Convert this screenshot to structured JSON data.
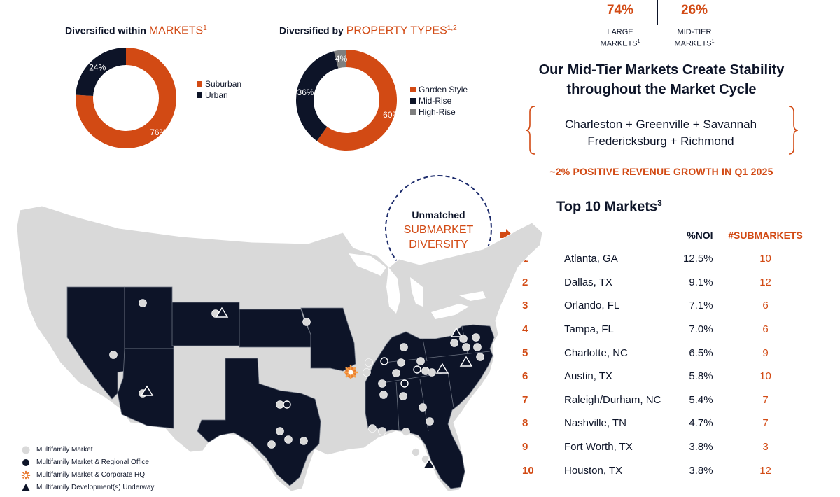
{
  "chart_data": [
    {
      "type": "pie",
      "title_prefix": "Diversified within ",
      "title_highlight": "MARKETS",
      "title_sup": "1",
      "categories": [
        "Suburban",
        "Urban"
      ],
      "values": [
        76,
        24
      ],
      "value_labels": [
        "76%",
        "24%"
      ],
      "colors": [
        "#d24a14",
        "#0d1428"
      ],
      "legend_position": "right"
    },
    {
      "type": "pie",
      "title_prefix": "Diversified by ",
      "title_highlight": "PROPERTY TYPES",
      "title_sup": "1,2",
      "categories": [
        "Garden Style",
        "Mid-Rise",
        "High-Rise"
      ],
      "values": [
        60,
        36,
        4
      ],
      "value_labels": [
        "60%",
        "36%",
        "4%"
      ],
      "colors": [
        "#d24a14",
        "#0d1428",
        "#7f7f7f"
      ],
      "legend_position": "right"
    },
    {
      "type": "table",
      "title": "Top 10 Markets",
      "title_sup": "3",
      "columns": [
        "",
        "",
        "%NOI",
        "#SUBMARKETS"
      ],
      "rows": [
        {
          "rank": "1",
          "market": "Atlanta, GA",
          "noi": "12.5%",
          "submarkets": "10"
        },
        {
          "rank": "2",
          "market": "Dallas, TX",
          "noi": "9.1%",
          "submarkets": "12"
        },
        {
          "rank": "3",
          "market": "Orlando, FL",
          "noi": "7.1%",
          "submarkets": "6"
        },
        {
          "rank": "4",
          "market": "Tampa, FL",
          "noi": "7.0%",
          "submarkets": "6"
        },
        {
          "rank": "5",
          "market": "Charlotte, NC",
          "noi": "6.5%",
          "submarkets": "9"
        },
        {
          "rank": "6",
          "market": "Austin, TX",
          "noi": "5.8%",
          "submarkets": "10"
        },
        {
          "rank": "7",
          "market": "Raleigh/Durham, NC",
          "noi": "5.4%",
          "submarkets": "7"
        },
        {
          "rank": "8",
          "market": "Nashville, TN",
          "noi": "4.7%",
          "submarkets": "7"
        },
        {
          "rank": "9",
          "market": "Fort Worth, TX",
          "noi": "3.8%",
          "submarkets": "3"
        },
        {
          "rank": "10",
          "market": "Houston, TX",
          "noi": "3.8%",
          "submarkets": "12"
        }
      ]
    }
  ],
  "stats": [
    {
      "pct": "74%",
      "label_line1": "LARGE",
      "label_line2": "MARKETS",
      "sup": "1"
    },
    {
      "pct": "26%",
      "label_line1": "MID-TIER",
      "label_line2": "MARKETS",
      "sup": "1"
    }
  ],
  "stability": {
    "line1": "Our Mid-Tier Markets Create Stability",
    "line2": "throughout the Market Cycle"
  },
  "cities": {
    "line1": "Charleston + Greenville + Savannah",
    "line2": "Fredericksburg + Richmond"
  },
  "growth_text": "~2% POSITIVE REVENUE GROWTH IN Q1 2025",
  "badge": {
    "line1": "Unmatched",
    "line2": "SUBMARKET",
    "line3": "DIVERSITY"
  },
  "map_legend": [
    {
      "icon": "gray-dot-icon",
      "label": "Multifamily Market"
    },
    {
      "icon": "navy-dot-icon",
      "label": "Multifamily Market & Regional Office"
    },
    {
      "icon": "orange-star-icon",
      "label": "Multifamily Market & Corporate HQ"
    },
    {
      "icon": "triangle-icon",
      "label": "Multifamily Development(s) Underway"
    }
  ],
  "colors": {
    "accent": "#d24a14",
    "navy": "#0d1428",
    "map_gray": "#d9d9d9",
    "high_rise_gray": "#7f7f7f"
  }
}
